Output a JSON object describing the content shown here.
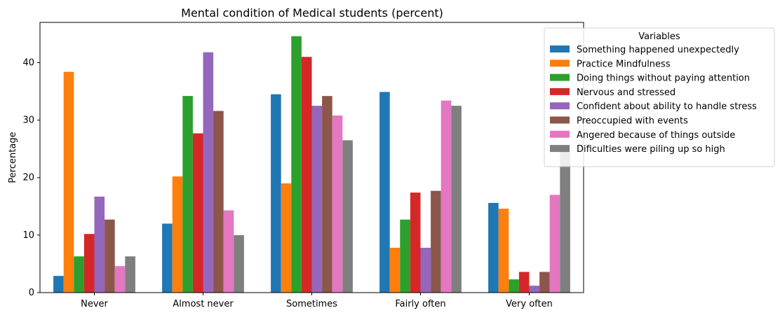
{
  "chart_data": {
    "type": "bar",
    "title": "Mental condition of Medical students (percent)",
    "xlabel": "",
    "ylabel": "Percentage",
    "ylim": [
      0,
      47
    ],
    "yticks": [
      0,
      10,
      20,
      30,
      40
    ],
    "categories": [
      "Never",
      "Almost never",
      "Sometimes",
      "Fairly often",
      "Very often"
    ],
    "legend_title": "Variables",
    "legend_position": "upper-right-outside",
    "grid": false,
    "series": [
      {
        "name": "Something happened unexpectedly",
        "color": "#1f77b4",
        "values": [
          2.9,
          12.0,
          34.5,
          34.9,
          15.6
        ]
      },
      {
        "name": "Practice Mindfulness",
        "color": "#ff7f0e",
        "values": [
          38.4,
          20.2,
          19.0,
          7.8,
          14.6
        ]
      },
      {
        "name": "Doing things without paying attention",
        "color": "#2ca02c",
        "values": [
          6.3,
          34.2,
          44.6,
          12.7,
          2.3
        ]
      },
      {
        "name": "Nervous and stressed",
        "color": "#d62728",
        "values": [
          10.2,
          27.7,
          41.0,
          17.4,
          3.6
        ]
      },
      {
        "name": "Confident about ability to handle stress",
        "color": "#9467bd",
        "values": [
          16.7,
          41.8,
          32.5,
          7.8,
          1.2
        ]
      },
      {
        "name": "Preoccupied with events",
        "color": "#8c564b",
        "values": [
          12.7,
          31.6,
          34.2,
          17.7,
          3.6
        ]
      },
      {
        "name": "Angered because of things outside",
        "color": "#e377c2",
        "values": [
          4.6,
          14.3,
          30.8,
          33.4,
          17.0
        ]
      },
      {
        "name": "Dificulties were piling up so high",
        "color": "#7f7f7f",
        "values": [
          6.3,
          10.0,
          26.5,
          32.5,
          25.0
        ]
      }
    ]
  }
}
